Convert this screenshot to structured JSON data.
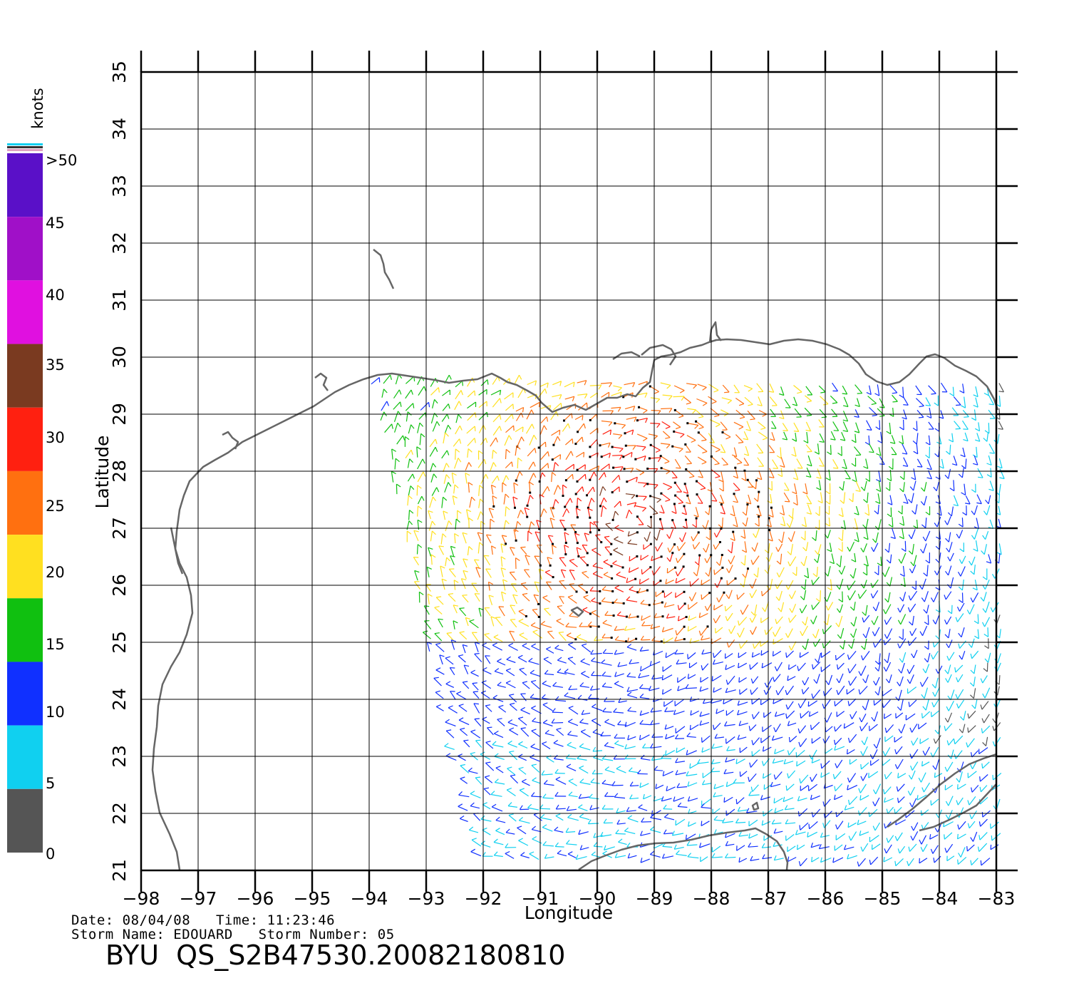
{
  "plot": {
    "xlabel": "Longitude",
    "ylabel": "Latitude",
    "lon_range": [
      -98,
      -83
    ],
    "lat_range": [
      21,
      35
    ],
    "lon_ticks": [
      "−98",
      "−97",
      "−96",
      "−95",
      "−94",
      "−93",
      "−92",
      "−91",
      "−90",
      "−89",
      "−88",
      "−87",
      "−86",
      "−85",
      "−84",
      "−83"
    ],
    "lat_ticks": [
      "21",
      "22",
      "23",
      "24",
      "25",
      "26",
      "27",
      "28",
      "29",
      "30",
      "31",
      "32",
      "33",
      "34",
      "35"
    ]
  },
  "colorbar": {
    "unit_label": "knots",
    "labels": [
      ">50",
      "45",
      "40",
      "35",
      "30",
      "25",
      "20",
      "15",
      "10",
      "5",
      "0"
    ],
    "bands": [
      {
        "from": 50,
        "to": 55,
        "color": "#5a10c8"
      },
      {
        "from": 45,
        "to": 50,
        "color": "#a010c8"
      },
      {
        "from": 40,
        "to": 45,
        "color": "#e010e0"
      },
      {
        "from": 35,
        "to": 40,
        "color": "#7a3a20"
      },
      {
        "from": 30,
        "to": 35,
        "color": "#ff2010"
      },
      {
        "from": 25,
        "to": 30,
        "color": "#ff7010"
      },
      {
        "from": 20,
        "to": 25,
        "color": "#ffe020"
      },
      {
        "from": 15,
        "to": 20,
        "color": "#10c010"
      },
      {
        "from": 10,
        "to": 15,
        "color": "#1030ff"
      },
      {
        "from": 5,
        "to": 10,
        "color": "#10d0f0"
      },
      {
        "from": 0,
        "to": 5,
        "color": "#555555"
      }
    ]
  },
  "footer": {
    "line1": "Date: 08/04/08   Time: 11:23:46",
    "line2": "Storm Name: EDOUARD   Storm Number: 05",
    "title": "BYU  QS_S2B47530.20082180810"
  },
  "colors": {
    "coast": "#666666",
    "grid": "#000000"
  }
}
